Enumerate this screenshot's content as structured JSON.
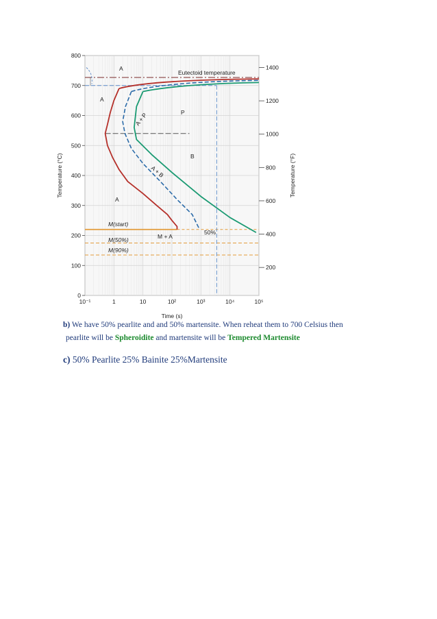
{
  "figure": {
    "x_axis": {
      "label": "Time (s)",
      "scale": "log",
      "tick_labels": [
        "10⁻¹",
        "1",
        "10",
        "10²",
        "10³",
        "10⁴",
        "10⁵"
      ],
      "ticks": [
        0.1,
        1,
        10,
        100,
        1000,
        10000,
        100000
      ]
    },
    "y_axis_left": {
      "label": "Temperature (°C)",
      "range": [
        0,
        800
      ],
      "tick_labels": [
        "0",
        "100",
        "200",
        "300",
        "400",
        "500",
        "600",
        "700",
        "800"
      ]
    },
    "y_axis_right": {
      "label": "Temperature (°F)",
      "tick_labels": [
        "200",
        "400",
        "600",
        "800",
        "1000",
        "1200",
        "1400"
      ]
    },
    "annotations": {
      "eutectoid": "Eutectoid temperature",
      "A_top": "A",
      "A_left": "A",
      "A_mid": "A",
      "P": "P",
      "B": "B",
      "AP": "A + P",
      "AB": "A + B",
      "MA": "M + A",
      "fifty": "50%",
      "m_start": "M(start)",
      "m_50": "M(50%)",
      "m_90": "M(90%)"
    },
    "colors": {
      "start_curve": "#b5302a",
      "finish_curve": "#1a9a72",
      "fifty_curve": "#2a6aa8",
      "m_start_line": "#e39b3a",
      "eutectoid_line": "#7a2a2a",
      "guide_line": "#5a8ac8"
    }
  },
  "chart_data": {
    "type": "line",
    "title": "",
    "xlabel": "Time (s)",
    "ylabel": "Temperature (°C)",
    "y2label": "Temperature (°F)",
    "xscale": "log",
    "xlim": [
      0.1,
      100000
    ],
    "ylim": [
      0,
      800
    ],
    "series": [
      {
        "x": [
          1.5,
          1.0,
          0.75,
          0.6,
          0.5,
          0.6,
          0.9,
          1.5,
          3,
          10,
          30,
          70,
          100,
          150,
          150
        ],
        "y": [
          690,
          650,
          610,
          570,
          540,
          500,
          460,
          420,
          380,
          340,
          300,
          270,
          250,
          230,
          220
        ]
      },
      {
        "x": [
          4,
          2.5,
          2,
          2.4,
          4,
          10,
          40,
          150,
          500,
          900
        ],
        "y": [
          680,
          630,
          580,
          540,
          490,
          440,
          380,
          320,
          270,
          220
        ]
      },
      {
        "x": [
          10,
          6,
          5,
          6,
          20,
          100,
          1000,
          10000,
          80000
        ],
        "y": [
          680,
          630,
          560,
          520,
          470,
          410,
          330,
          260,
          210
        ]
      }
    ],
    "horizontal_lines": [
      {
        "label": "Eutectoid temperature",
        "y": 727
      },
      {
        "label": "M(start)",
        "y": 220
      },
      {
        "label": "M(50%)",
        "y": 175
      },
      {
        "label": "M(90%)",
        "y": 135
      }
    ]
  },
  "text": {
    "b_label": "b)",
    "b_line1": "We have 50% pearlite and and 50% martensite. When reheat them to 700 Celsius then",
    "b_line2_a": "pearlite will be ",
    "b_line2_spheroidite": "Spheroidite",
    "b_line2_b": " and martensite will be ",
    "b_line2_tempered": "Tempered Martensite",
    "c_label": "c)",
    "c_line": " 50% Pearlite 25% Bainite 25%Martensite"
  }
}
